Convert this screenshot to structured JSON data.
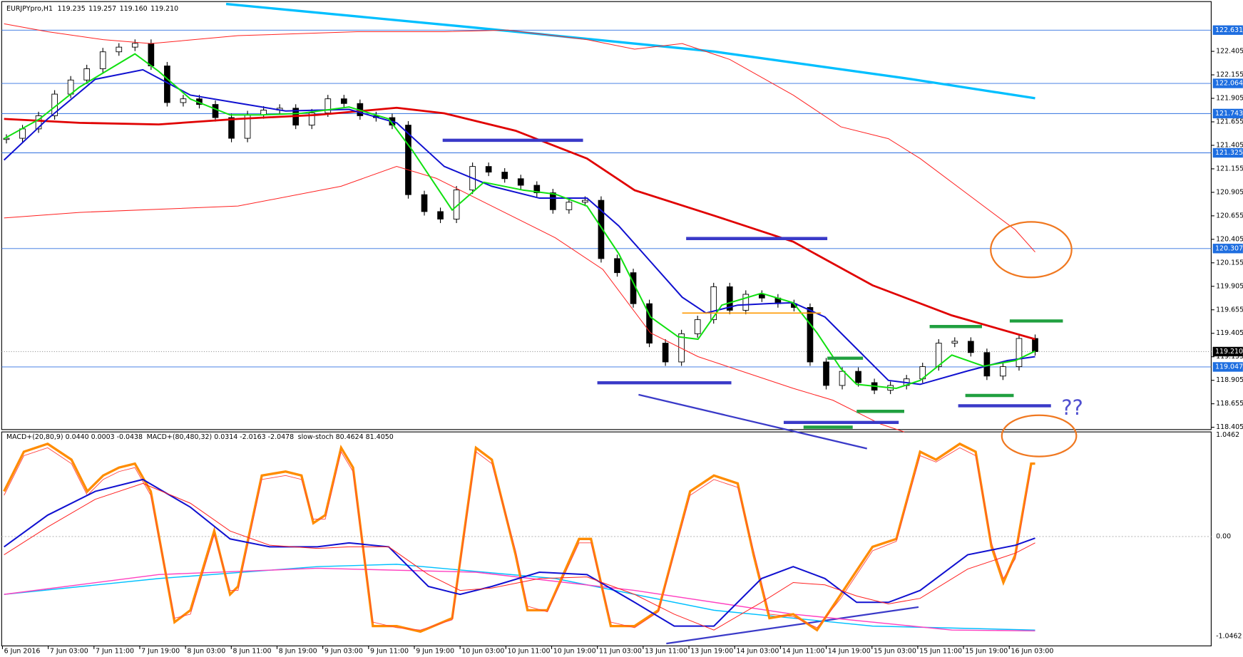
{
  "header": {
    "symbol": "EURJPYpro,H1",
    "values": [
      "119.235",
      "119.257",
      "119.160",
      "119.210"
    ]
  },
  "indicators": {
    "macd_fast": "MACD+(20,80,9) 0.0440 0.0003 -0.0438",
    "macd_slow": "MACD+(80,480,32) 0.0314 -2.0163 -2.0478",
    "stoch": "slow-stoch 80.4624 81.4050"
  },
  "price_axis": [
    "122.405",
    "122.155",
    "121.905",
    "121.655",
    "121.405",
    "121.155",
    "120.905",
    "120.655",
    "120.405",
    "120.155",
    "119.905",
    "119.655",
    "119.405",
    "119.155",
    "118.905",
    "118.655",
    "118.405"
  ],
  "levels": [
    "122.631",
    "122.064",
    "121.743",
    "121.325",
    "120.307",
    "119.047"
  ],
  "current": "119.210",
  "macd_axis": [
    "1.0462",
    "0.00",
    "-1.0462"
  ],
  "time_axis": [
    "6 Jun 2016",
    "7 Jun 03:00",
    "7 Jun 11:00",
    "7 Jun 19:00",
    "8 Jun 03:00",
    "8 Jun 11:00",
    "8 Jun 19:00",
    "9 Jun 03:00",
    "9 Jun 11:00",
    "9 Jun 19:00",
    "10 Jun 03:00",
    "10 Jun 11:00",
    "10 Jun 19:00",
    "11 Jun 03:00",
    "13 Jun 11:00",
    "13 Jun 19:00",
    "14 Jun 03:00",
    "14 Jun 11:00",
    "14 Jun 19:00",
    "15 Jun 03:00",
    "15 Jun 11:00",
    "15 Jun 19:00",
    "16 Jun 03:00"
  ],
  "annotation": "??",
  "closes": [
    121.48,
    121.58,
    121.72,
    121.95,
    122.1,
    122.22,
    122.4,
    122.45,
    122.49,
    122.25,
    121.86,
    121.9,
    121.84,
    121.7,
    121.48,
    121.73,
    121.78,
    121.8,
    121.62,
    121.75,
    121.9,
    121.85,
    121.72,
    121.7,
    121.62,
    120.88,
    120.7,
    120.62,
    120.93,
    121.18,
    121.12,
    121.05,
    120.98,
    120.9,
    120.72,
    120.8,
    120.82,
    120.2,
    120.05,
    119.72,
    119.3,
    119.1,
    119.4,
    119.55,
    119.9,
    119.65,
    119.82,
    119.78,
    119.72,
    119.68,
    119.1,
    118.85,
    119.0,
    118.88,
    118.8,
    118.85,
    118.92,
    119.05,
    119.3,
    119.32,
    119.2,
    118.95,
    119.05,
    119.35,
    119.21
  ]
}
